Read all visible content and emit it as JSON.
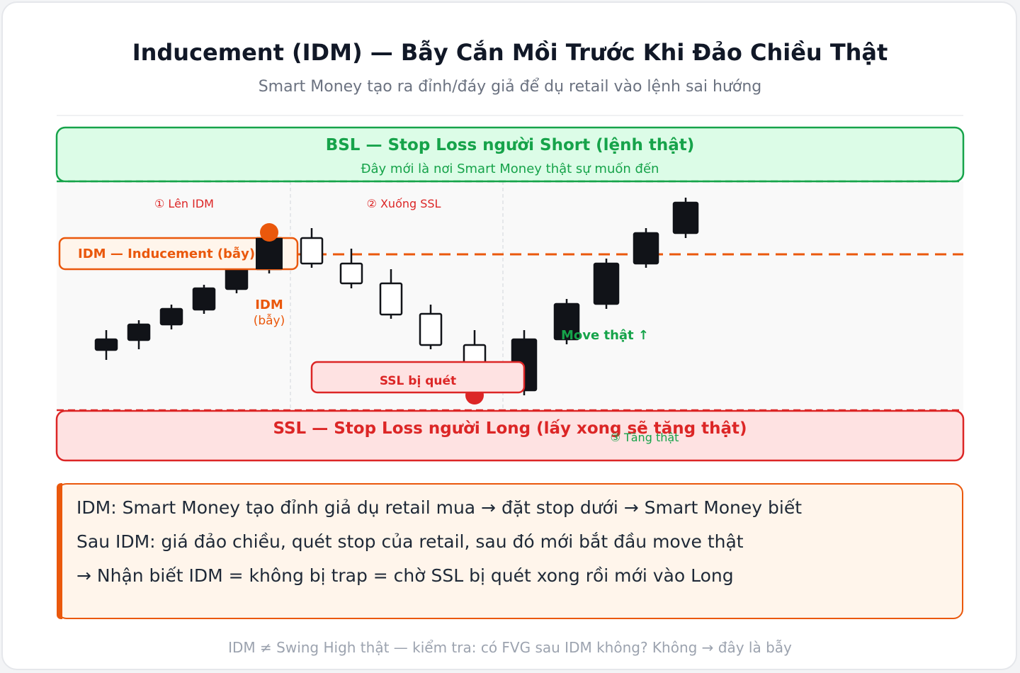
{
  "header": {
    "title": "Inducement (IDM) — Bẫy Cắn Mồi Trước Khi Đảo Chiều Thật",
    "subtitle": "Smart Money tạo ra đỉnh/đáy giả để dụ retail vào lệnh sai hướng"
  },
  "zones": {
    "bsl_title": "BSL — Stop Loss người Short (lệnh thật)",
    "bsl_sub": "Đây mới là nơi Smart Money thật sự muốn đến",
    "ssl_title": "SSL — Stop Loss người Long (lấy xong sẽ tăng thật)"
  },
  "phases": [
    "① Lên IDM",
    "② Xuống SSL",
    "③ Tăng thật"
  ],
  "labels": {
    "idm_line": "IDM — Inducement (bẫy)",
    "idm_point": "IDM",
    "idm_point_sub": "(bẫy)",
    "ssl_swept": "SSL bị quét",
    "move_real": "Move thật ↑"
  },
  "colors": {
    "green": "#16a34a",
    "orange": "#ea580c",
    "red": "#dc2626",
    "candle_dark": "#111318"
  },
  "note": {
    "lines": [
      "IDM: Smart Money tạo đỉnh giả dụ retail mua → đặt stop dưới → Smart Money biết",
      "Sau IDM: giá đảo chiều, quét stop của retail, sau đó mới bắt đầu move thật",
      "→ Nhận biết IDM = không bị trap = chờ SSL bị quét xong rồi mới vào Long"
    ]
  },
  "footer": "IDM ≠ Swing High thật — kiểm tra: có FVG sau IDM không? Không → đây là bẫy"
}
